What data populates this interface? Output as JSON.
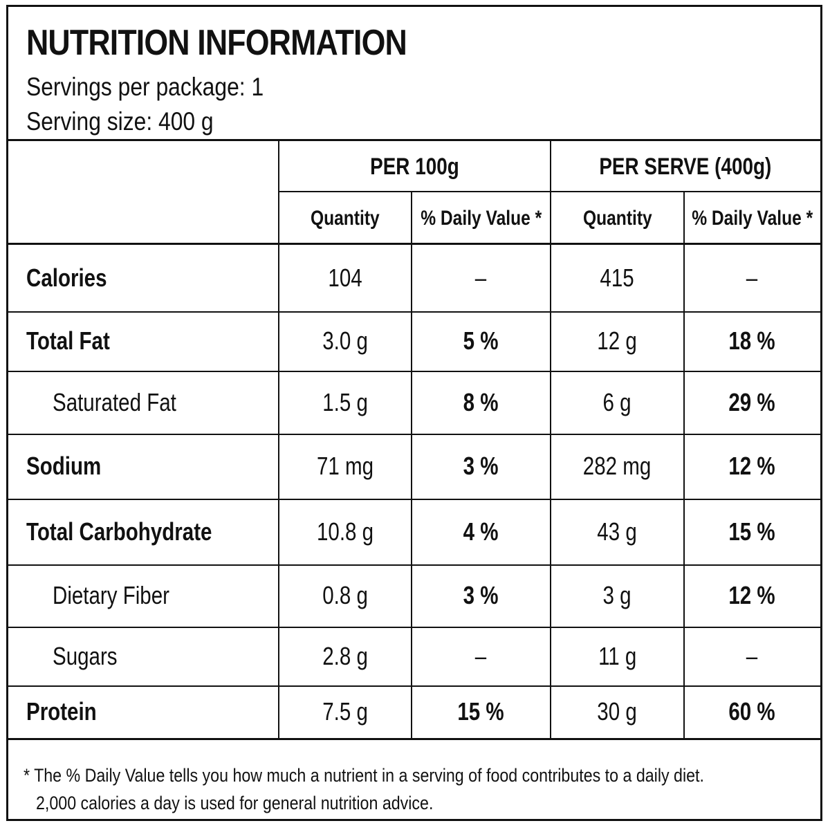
{
  "label": {
    "title": "NUTRITION INFORMATION",
    "servings_per_package": "Servings per package: 1",
    "serving_size": "Serving size: 400 g"
  },
  "columns": {
    "per_100g": "PER 100g",
    "per_serve": "PER SERVE (400g)",
    "quantity": "Quantity",
    "daily_value": "% Daily Value *"
  },
  "rows": [
    {
      "name": "Calories",
      "indent": false,
      "q100": "104",
      "dv100": "–",
      "qserve": "415",
      "dvserve": "–"
    },
    {
      "name": "Total Fat",
      "indent": false,
      "q100": "3.0 g",
      "dv100": "5 %",
      "qserve": "12 g",
      "dvserve": "18 %"
    },
    {
      "name": "Saturated Fat",
      "indent": true,
      "q100": "1.5 g",
      "dv100": "8 %",
      "qserve": "6 g",
      "dvserve": "29 %"
    },
    {
      "name": "Sodium",
      "indent": false,
      "q100": "71 mg",
      "dv100": "3 %",
      "qserve": "282 mg",
      "dvserve": "12 %"
    },
    {
      "name": "Total Carbohydrate",
      "indent": false,
      "q100": "10.8 g",
      "dv100": "4 %",
      "qserve": "43 g",
      "dvserve": "15 %"
    },
    {
      "name": "Dietary Fiber",
      "indent": true,
      "q100": "0.8 g",
      "dv100": "3 %",
      "qserve": "3 g",
      "dvserve": "12 %"
    },
    {
      "name": "Sugars",
      "indent": true,
      "q100": "2.8 g",
      "dv100": "–",
      "qserve": "11 g",
      "dvserve": "–"
    },
    {
      "name": "Protein",
      "indent": false,
      "q100": "7.5 g",
      "dv100": "15 %",
      "qserve": "30 g",
      "dvserve": "60 %"
    }
  ],
  "footnote": {
    "line1": "* The % Daily Value tells you how much a nutrient in a serving of food contributes to a daily diet.",
    "line2": "2,000 calories a day is used for general nutrition advice."
  }
}
